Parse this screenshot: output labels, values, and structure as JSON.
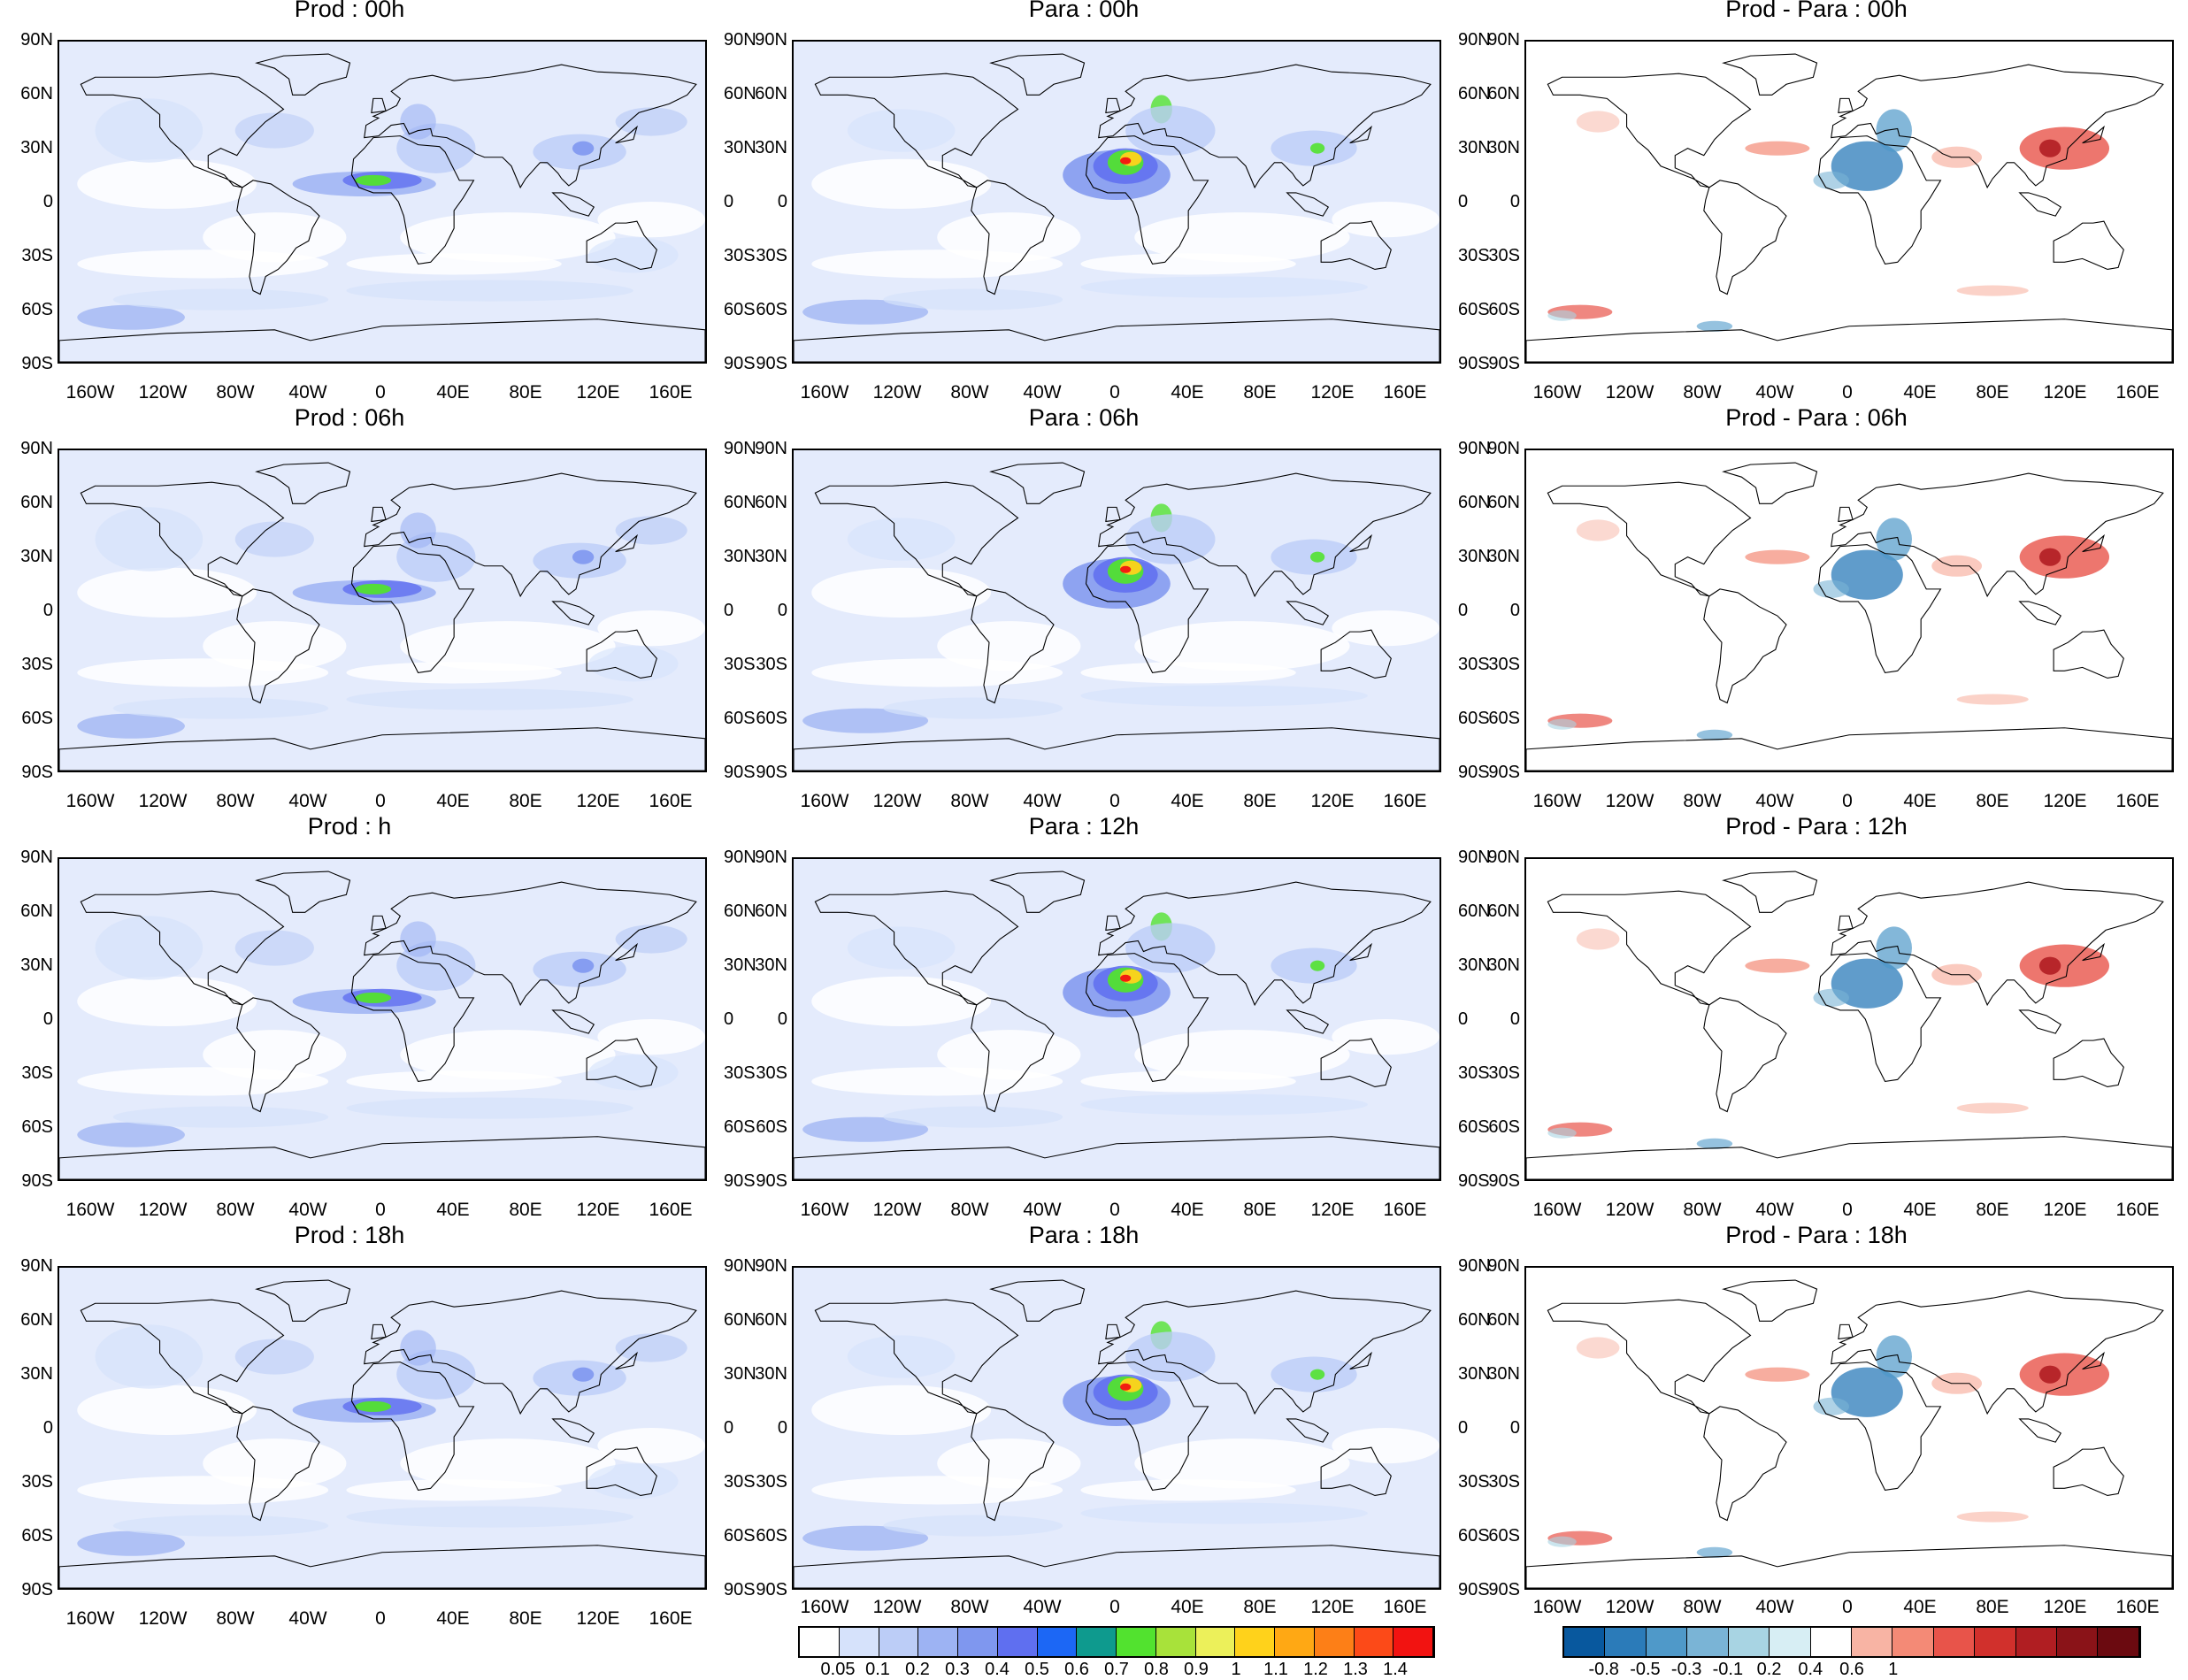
{
  "panels": [
    {
      "id": "p00",
      "title": "Prod : 00h",
      "kind": "field"
    },
    {
      "id": "a00",
      "title": "Para : 00h",
      "kind": "para"
    },
    {
      "id": "d00",
      "title": "Prod - Para : 00h",
      "kind": "diff"
    },
    {
      "id": "p06",
      "title": "Prod : 06h",
      "kind": "field"
    },
    {
      "id": "a06",
      "title": "Para : 06h",
      "kind": "para"
    },
    {
      "id": "d06",
      "title": "Prod - Para : 06h",
      "kind": "diff"
    },
    {
      "id": "p12",
      "title": "Prod : h",
      "kind": "field"
    },
    {
      "id": "a12",
      "title": "Para : 12h",
      "kind": "para"
    },
    {
      "id": "d12",
      "title": "Prod - Para : 12h",
      "kind": "diff"
    },
    {
      "id": "p18",
      "title": "Prod : 18h",
      "kind": "field"
    },
    {
      "id": "a18",
      "title": "Para : 18h",
      "kind": "para"
    },
    {
      "id": "d18",
      "title": "Prod - Para : 18h",
      "kind": "diff"
    }
  ],
  "lat_labels": [
    "90N",
    "60N",
    "30N",
    "0",
    "30S",
    "60S",
    "90S"
  ],
  "lon_labels": [
    "160W",
    "120W",
    "80W",
    "40W",
    "0",
    "40E",
    "80E",
    "120E",
    "160E"
  ],
  "colorbar_field": {
    "labels": [
      "0.05",
      "0.1",
      "0.2",
      "0.3",
      "0.4",
      "0.5",
      "0.6",
      "0.7",
      "0.8",
      "0.9",
      "1",
      "1.1",
      "1.2",
      "1.3",
      "1.4"
    ],
    "colors": [
      "#ffffff",
      "#d6e2fb",
      "#bccdf7",
      "#9db3f3",
      "#7f97ef",
      "#5f6ff0",
      "#1c67f5",
      "#0e9a8e",
      "#52e22f",
      "#a8e23a",
      "#ecf05a",
      "#ffd21b",
      "#ffa814",
      "#fd7f17",
      "#fc4a18",
      "#f21311"
    ]
  },
  "colorbar_diff": {
    "labels": [
      "-0.8",
      "-0.5",
      "-0.3",
      "-0.1",
      "0.2",
      "0.4",
      "0.6",
      "1"
    ],
    "colors": [
      "#08589e",
      "#2b7bb9",
      "#4f99c9",
      "#7ab4d6",
      "#a8d4e3",
      "#d7eef4",
      "#ffffff",
      "#f8b4a4",
      "#f48a76",
      "#e8544a",
      "#d1302c",
      "#b01e22",
      "#8a1318",
      "#6b0a10"
    ]
  }
}
